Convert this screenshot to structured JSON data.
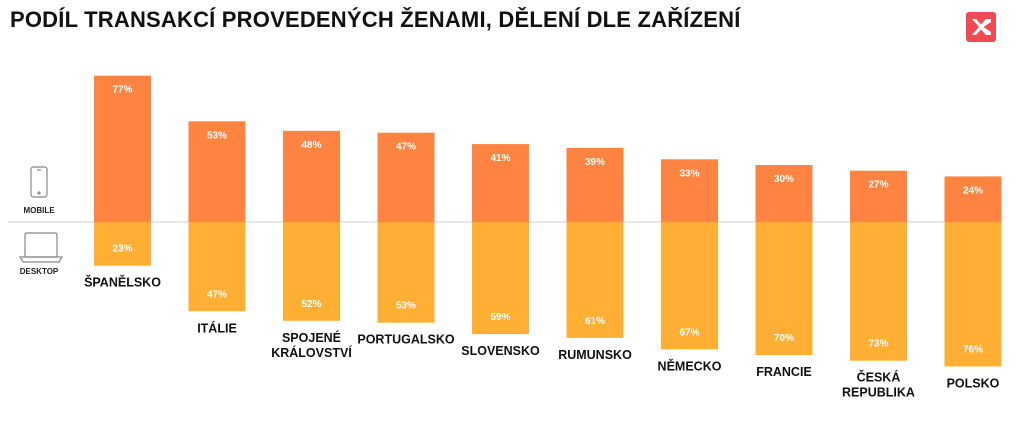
{
  "title": "PODÍL TRANSAKCÍ PROVEDENÝCH ŽENAMI, DĚLENÍ DLE ZAŘÍZENÍ",
  "logo_icon": "x-brand-logo",
  "colors": {
    "mobile": "#FF8441",
    "desktop": "#FFB034",
    "logo_bg": "#F04B55",
    "baseline": "#cfcfcf"
  },
  "legend": {
    "mobile_label": "MOBILE",
    "desktop_label": "DESKTOP",
    "mobile_icon": "smartphone-icon",
    "desktop_icon": "laptop-icon"
  },
  "chart_data": {
    "type": "bar",
    "stacked_diverging": true,
    "categories": [
      [
        "ŠPANĚLSKO"
      ],
      [
        "ITÁLIE"
      ],
      [
        "SPOJENÉ",
        "KRÁLOVSTVÍ"
      ],
      [
        "PORTUGALSKO"
      ],
      [
        "SLOVENSKO"
      ],
      [
        "RUMUNSKO"
      ],
      [
        "NĚMECKO"
      ],
      [
        "FRANCIE"
      ],
      [
        "ČESKÁ",
        "REPUBLIKA"
      ],
      [
        "POLSKO"
      ]
    ],
    "series": [
      {
        "name": "MOBILE",
        "values": [
          77,
          53,
          48,
          47,
          41,
          39,
          33,
          30,
          27,
          24
        ],
        "labels": [
          "77%",
          "53%",
          "48%",
          "47%",
          "41%",
          "39%",
          "33%",
          "30%",
          "27%",
          "24%"
        ]
      },
      {
        "name": "DESKTOP",
        "values": [
          23,
          47,
          52,
          53,
          59,
          61,
          67,
          70,
          73,
          76
        ],
        "labels": [
          "23%",
          "47%",
          "52%",
          "53%",
          "59%",
          "61%",
          "67%",
          "70%",
          "73%",
          "76%"
        ]
      }
    ],
    "unit": "%",
    "grid": false
  }
}
